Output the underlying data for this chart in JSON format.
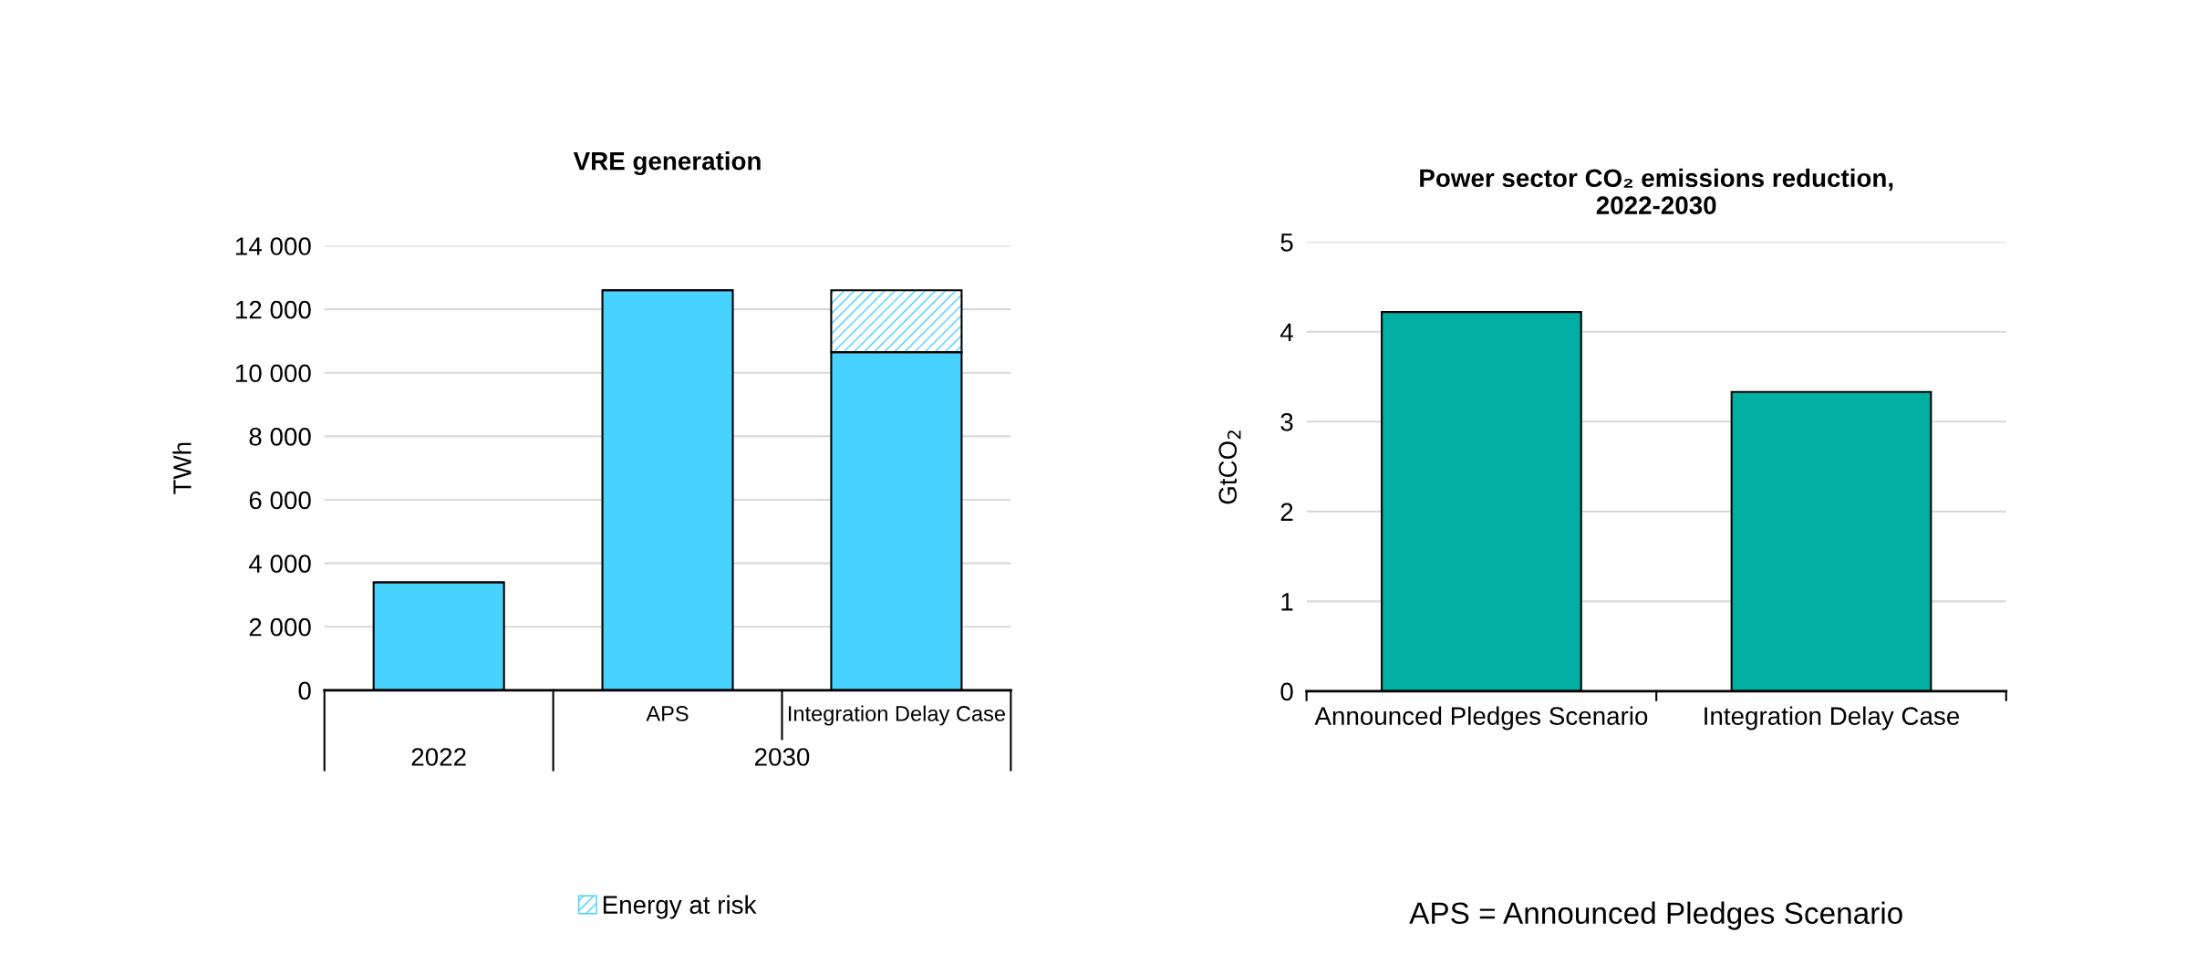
{
  "chart_data": [
    {
      "type": "bar",
      "title": "VRE generation",
      "ylabel": "TWh",
      "stacked": true,
      "categories": [
        null,
        "APS",
        "Integration Delay Case"
      ],
      "series": [
        {
          "color": "#48d2ff",
          "values": [
            3400,
            12600,
            10650
          ]
        },
        {
          "name": "Energy at risk",
          "color": "#48d2ff",
          "values": [
            null,
            null,
            1950
          ]
        }
      ],
      "ylim": [
        0,
        14000
      ],
      "yticks": [
        0,
        {
          "value": 2000,
          "label": "2 000"
        },
        {
          "value": 4000,
          "label": "4 000"
        },
        {
          "value": 6000,
          "label": "6 000"
        },
        {
          "value": 8000,
          "label": "8 000"
        },
        {
          "value": 10000,
          "label": "10 000"
        },
        {
          "value": 12000,
          "label": "12 000"
        },
        {
          "value": 14000,
          "label": "14 000"
        }
      ],
      "grid": "y",
      "legend": "bottom",
      "annotations": [
        "2022",
        "2030"
      ]
    },
    {
      "type": "bar",
      "title": "Power sector CO₂ emissions reduction,\n2022-2030",
      "ylabel": "GtCO$_{2}$",
      "categories": [
        "Announced Pledges Scenario",
        "Integration Delay Case"
      ],
      "values": [
        4.22,
        3.33
      ],
      "color": "#00aea2",
      "ylim": [
        0,
        5
      ],
      "yticks": [
        0,
        1,
        2,
        3,
        4,
        5
      ],
      "grid": "y",
      "annotations": [
        "APS = Announced Pledges Scenario"
      ]
    }
  ]
}
